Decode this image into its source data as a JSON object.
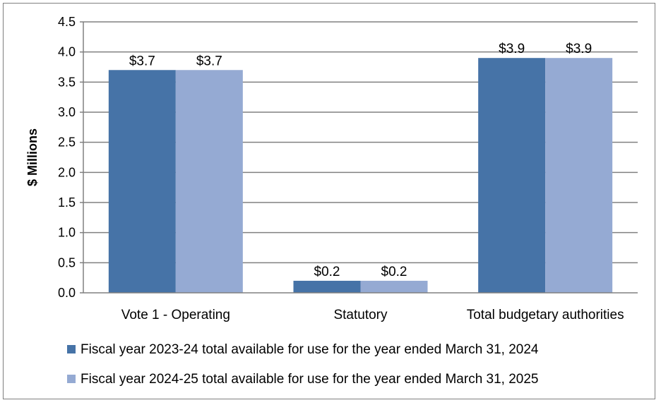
{
  "chart_data": {
    "type": "bar",
    "title": "",
    "xlabel": "",
    "ylabel": "$ Millions",
    "ylim": [
      0,
      4.5
    ],
    "yticks": [
      "0.0",
      "0.5",
      "1.0",
      "1.5",
      "2.0",
      "2.5",
      "3.0",
      "3.5",
      "4.0",
      "4.5"
    ],
    "categories": [
      "Vote 1 - Operating",
      "Statutory",
      "Total budgetary authorities"
    ],
    "series": [
      {
        "name": "Fiscal year 2023-24 total available for use for the year ended March 31, 2024",
        "values": [
          3.7,
          0.2,
          3.9
        ],
        "labels": [
          "$3.7",
          "$0.2",
          "$3.9"
        ],
        "color": "#4673a7"
      },
      {
        "name": "Fiscal year 2024-25 total available for use for the year ended March 31, 2025",
        "values": [
          3.7,
          0.2,
          3.9
        ],
        "labels": [
          "$3.7",
          "$0.2",
          "$3.9"
        ],
        "color": "#95aad3"
      }
    ],
    "grid": true,
    "legend_position": "bottom",
    "gridline_color": "#808080"
  }
}
